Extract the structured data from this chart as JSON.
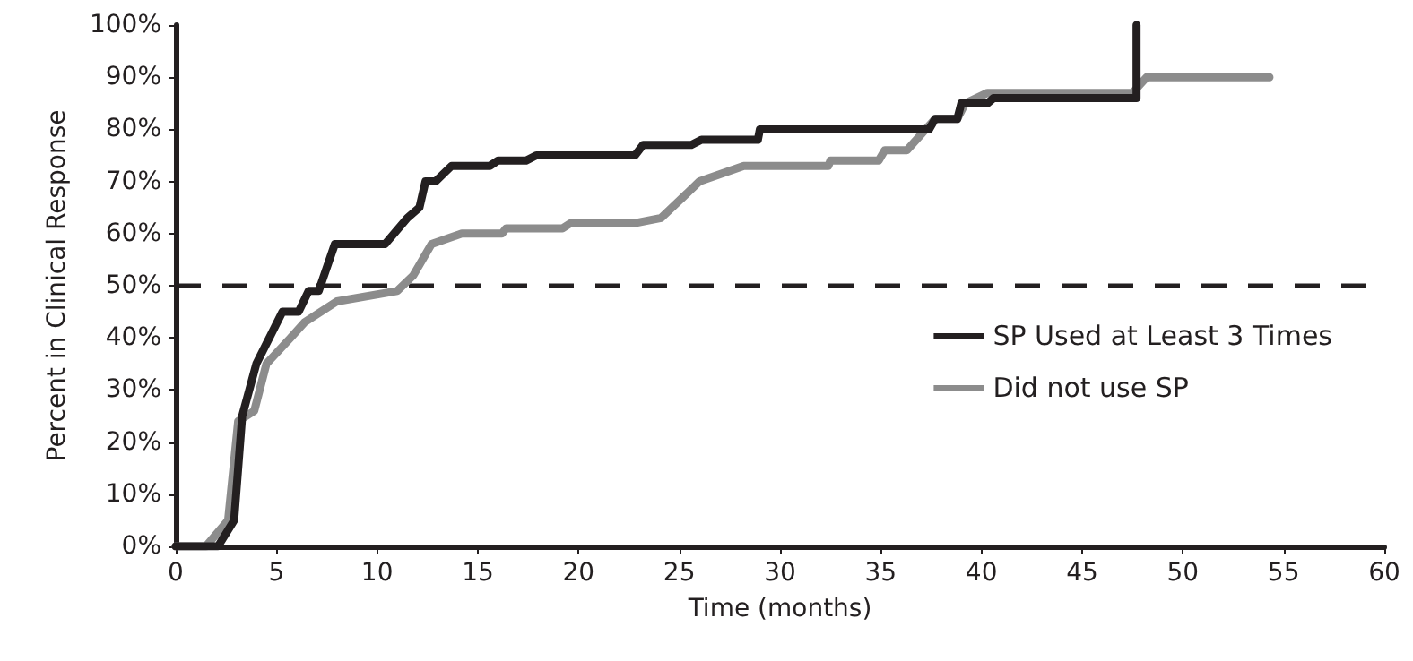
{
  "chart_data": {
    "type": "line",
    "xlabel": "Time (months)",
    "ylabel": "Percent in Clinical Response",
    "xlim": [
      0,
      60
    ],
    "xticks": [
      0,
      5,
      10,
      15,
      20,
      25,
      30,
      35,
      40,
      45,
      50,
      55,
      60
    ],
    "ylim": [
      0,
      100
    ],
    "yticks": [
      {
        "value": 0,
        "label": "0%"
      },
      {
        "value": 10,
        "label": "10%"
      },
      {
        "value": 20,
        "label": "20%"
      },
      {
        "value": 30,
        "label": "30%"
      },
      {
        "value": 40,
        "label": "40%"
      },
      {
        "value": 50,
        "label": "50%"
      },
      {
        "value": 60,
        "label": "60%"
      },
      {
        "value": 70,
        "label": "70%"
      },
      {
        "value": 80,
        "label": "80%"
      },
      {
        "value": 90,
        "label": "90%"
      },
      {
        "value": 100,
        "label": "100%"
      }
    ],
    "grid": false,
    "legend": "right",
    "marker": "none",
    "line_style": "solid",
    "ref_lines": [
      {
        "axis": "y",
        "value": 50,
        "label": null,
        "color": "#231f20",
        "line_style": "dashed"
      }
    ],
    "series": [
      {
        "name": "SP Used at Least 3 Times",
        "color": "#231f20",
        "x": [
          0,
          2.1,
          2.9,
          3.3,
          4.0,
          5.3,
          6.1,
          6.6,
          7.1,
          7.9,
          10.4,
          11.5,
          12.1,
          12.4,
          12.9,
          13.7,
          15.6,
          16.0,
          17.4,
          17.9,
          22.8,
          23.2,
          25.6,
          26.1,
          28.9,
          29.0,
          37.4,
          37.7,
          38.8,
          39.0,
          40.3,
          40.6,
          47.7,
          47.7
        ],
        "values": [
          0,
          0,
          5,
          25,
          35,
          45,
          45,
          49,
          49,
          58,
          58,
          63,
          65,
          70,
          70,
          73,
          73,
          74,
          74,
          75,
          75,
          77,
          77,
          78,
          78,
          80,
          80,
          82,
          82,
          85,
          85,
          86,
          86,
          100
        ]
      },
      {
        "name": "Did not use SP",
        "color": "#8c8c8c",
        "x": [
          0,
          1.5,
          2.6,
          3.1,
          3.9,
          4.5,
          5.7,
          6.4,
          8.0,
          11.0,
          11.8,
          12.7,
          14.2,
          16.2,
          16.4,
          19.2,
          19.6,
          22.8,
          24.1,
          26.0,
          28.2,
          32.4,
          32.5,
          34.9,
          35.2,
          36.3,
          37.0,
          37.7,
          38.8,
          39.2,
          40.3,
          47.5,
          48.2,
          54.3
        ],
        "values": [
          0,
          0,
          5,
          24,
          26,
          35,
          40,
          43,
          47,
          49,
          52,
          58,
          60,
          60,
          61,
          61,
          62,
          62,
          63,
          70,
          73,
          73,
          74,
          74,
          76,
          76,
          79,
          82,
          82,
          85,
          87,
          87,
          90,
          90
        ]
      }
    ]
  }
}
